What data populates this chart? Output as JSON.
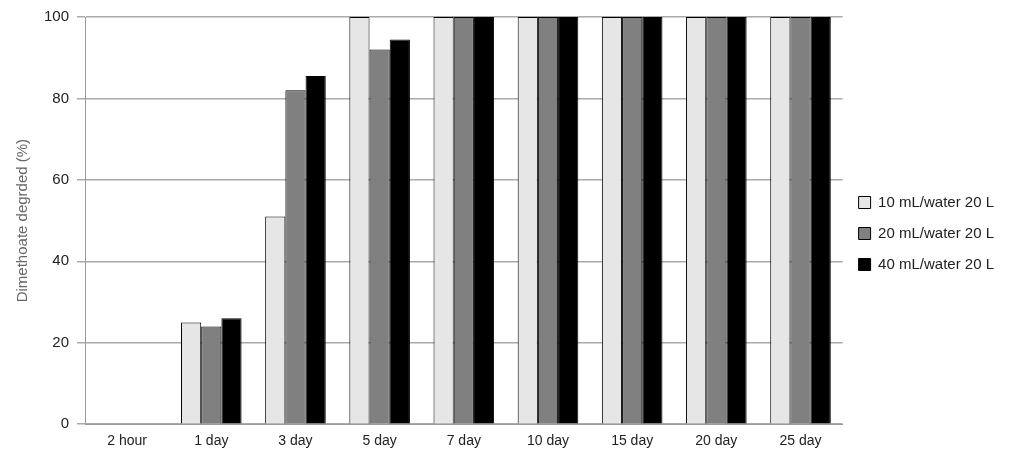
{
  "chart_data": {
    "type": "bar",
    "ylabel": "Dimethoate degrded (%)",
    "categories": [
      "2 hour",
      "1 day",
      "3 day",
      "5 day",
      "7 day",
      "10 day",
      "15 day",
      "20 day",
      "25 day"
    ],
    "series": [
      {
        "name": "10 mL/water 20 L",
        "color": "#e6e6e6",
        "values": [
          0,
          25,
          51,
          100,
          100,
          100,
          100,
          100,
          100
        ]
      },
      {
        "name": "20 mL/water 20 L",
        "color": "#808080",
        "values": [
          0,
          24,
          82,
          92,
          100,
          100,
          100,
          100,
          100
        ]
      },
      {
        "name": "40 mL/water 20 L",
        "color": "#000000",
        "values": [
          0,
          26,
          85.5,
          94.5,
          100,
          100,
          100,
          100,
          100
        ]
      }
    ],
    "ylim": [
      0,
      100
    ],
    "yticks": [
      0,
      20,
      40,
      60,
      80,
      100
    ],
    "grid": "y",
    "legend": "right"
  }
}
